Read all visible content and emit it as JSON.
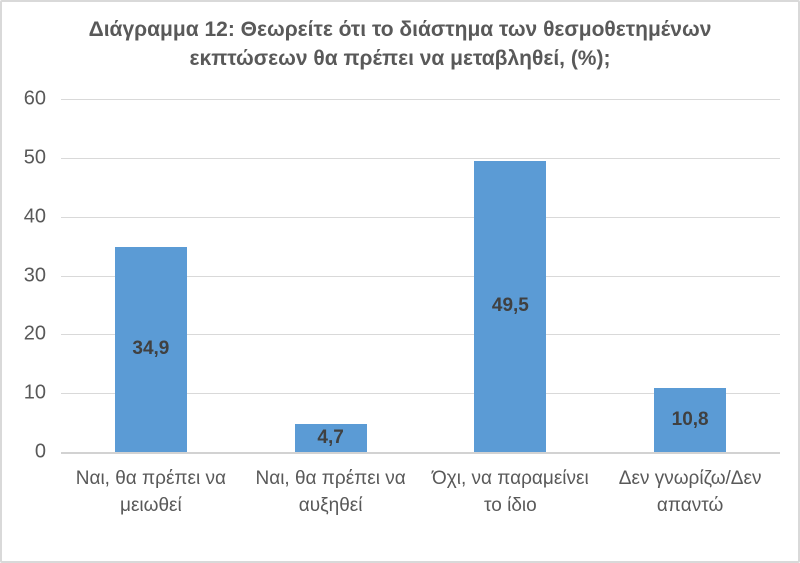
{
  "chart_data": {
    "type": "bar",
    "title": "Διάγραμμα 12: Θεωρείτε ότι το διάστημα των θεσμοθετημένων εκπτώσεων θα πρέπει να μεταβληθεί, (%);",
    "categories": [
      "Ναι, θα πρέπει να μειωθεί",
      "Ναι, θα πρέπει να αυξηθεί",
      "Όχι, να παραμείνει το ίδιο",
      "Δεν γνωρίζω/Δεν απαντώ"
    ],
    "values": [
      34.9,
      4.7,
      49.5,
      10.8
    ],
    "value_labels": [
      "34,9",
      "4,7",
      "49,5",
      "10,8"
    ],
    "xlabel": "",
    "ylabel": "",
    "ylim": [
      0,
      60
    ],
    "yticks": [
      0,
      10,
      20,
      30,
      40,
      50,
      60
    ],
    "grid": true,
    "legend": false,
    "bar_color": "#5B9BD5",
    "data_label_color": "#404040",
    "tick_label_color": "#595959",
    "title_color": "#595959",
    "gridline_color": "#D9D9D9",
    "frame_border_color": "#D9D9D9"
  }
}
